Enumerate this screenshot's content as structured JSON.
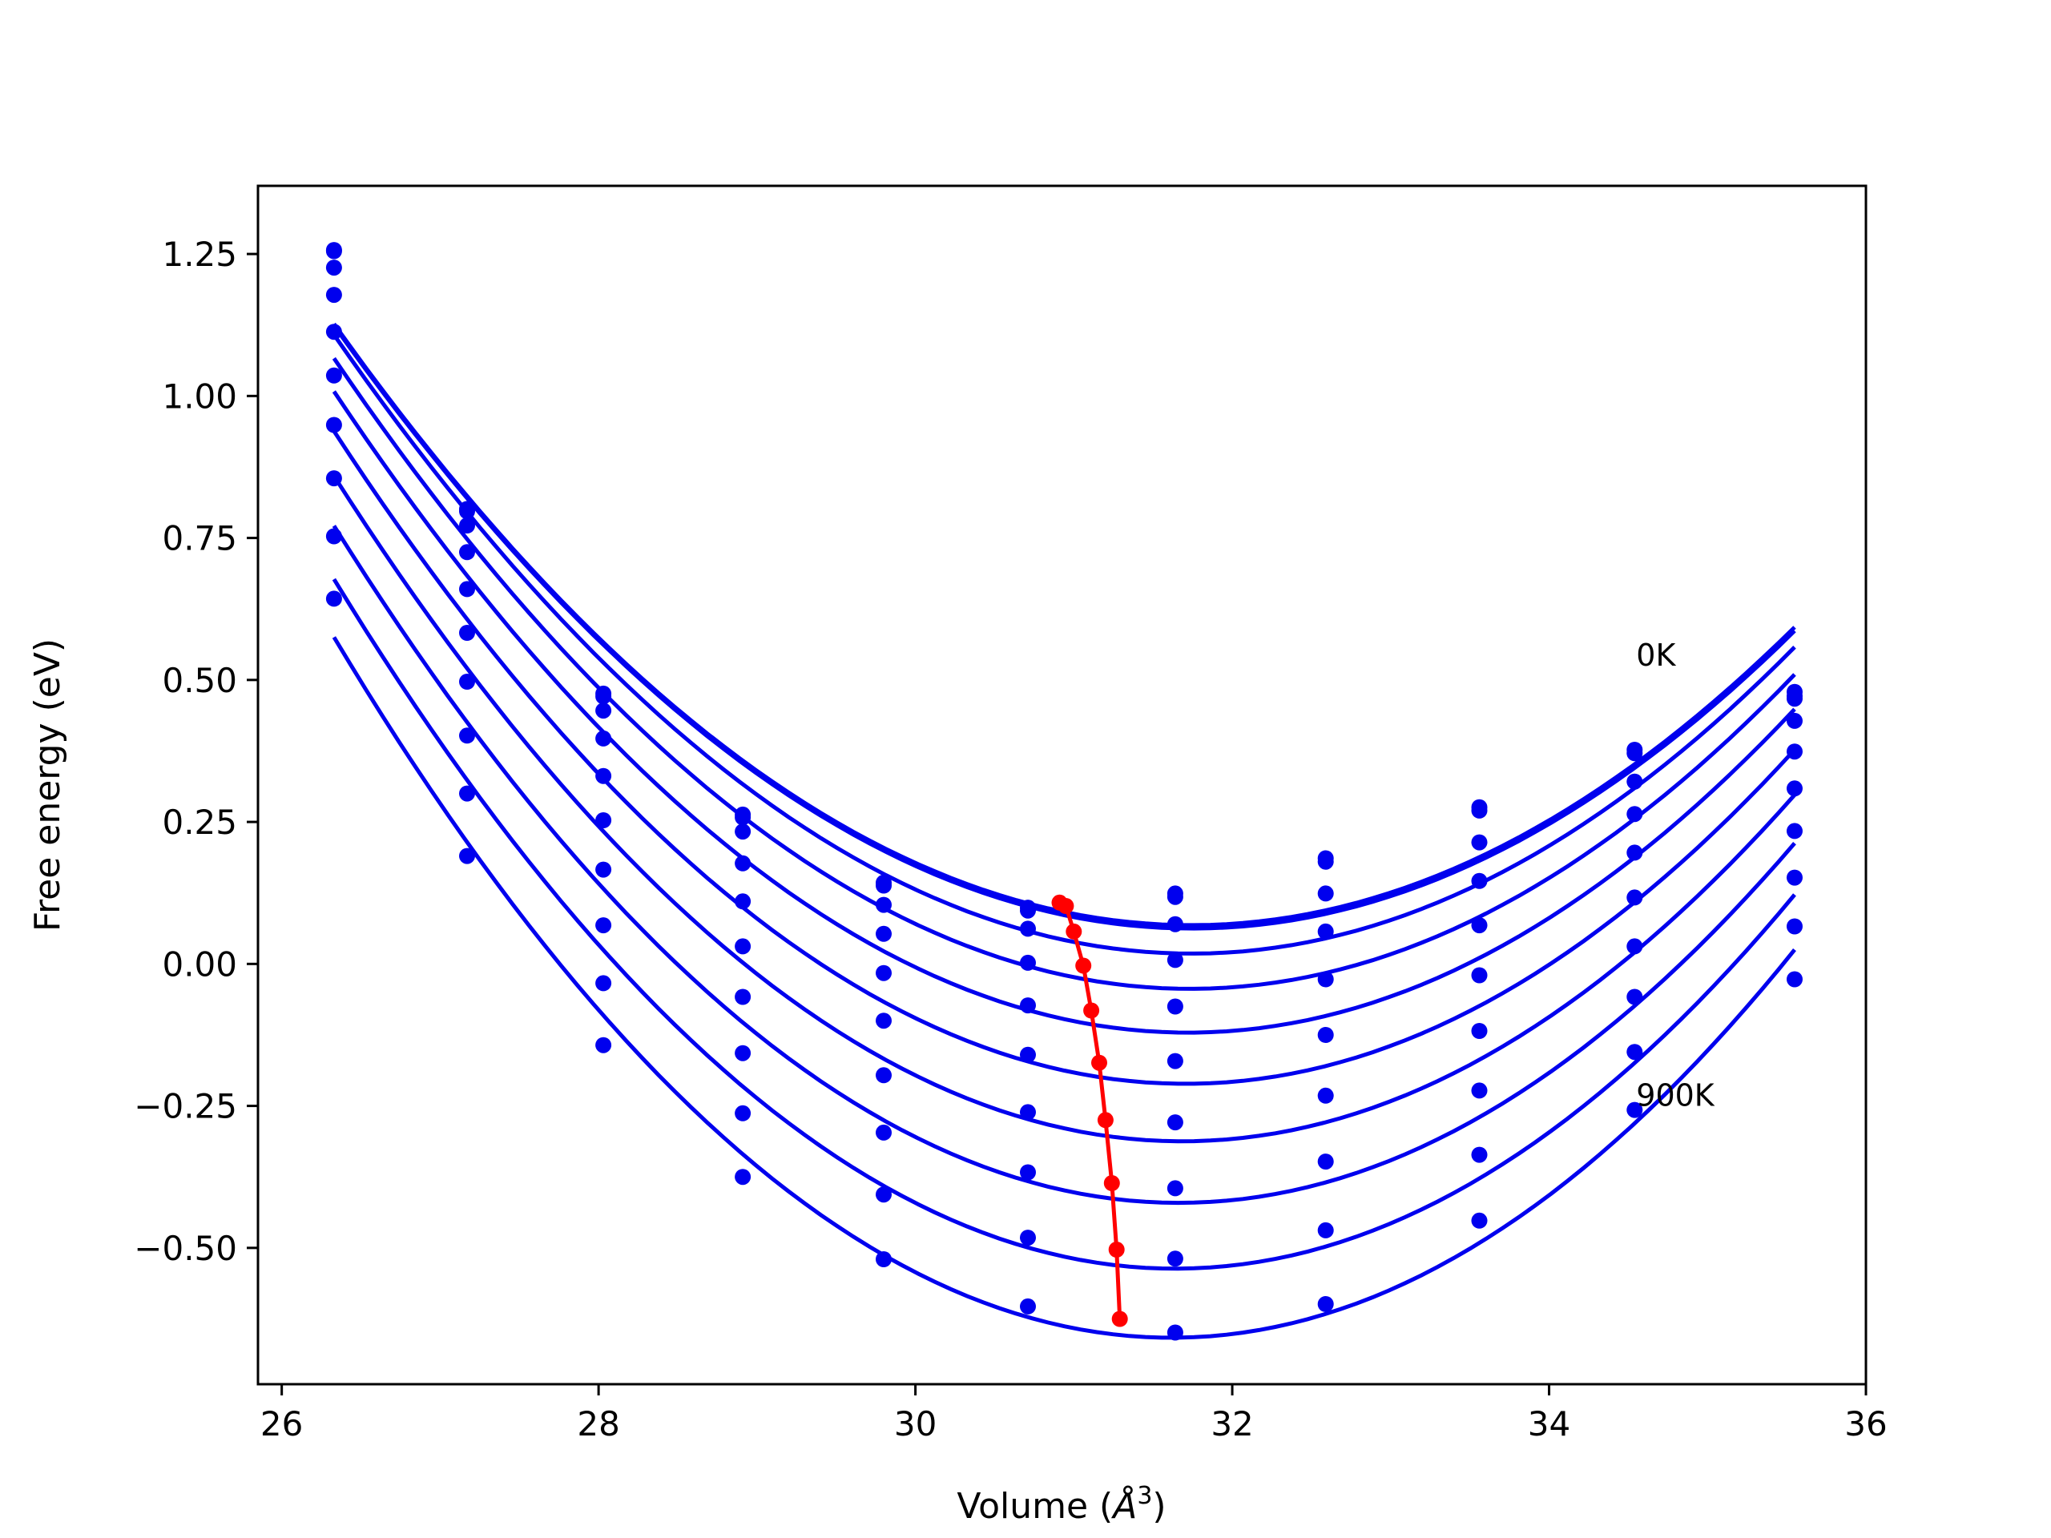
{
  "chart_data": {
    "type": "line",
    "title": "",
    "xlabel": "Volume (",
    "xlabel_unit": "Å",
    "xlabel_exp": "3",
    "xlabel_close": ")",
    "ylabel": "Free energy (eV)",
    "xlim": [
      25.85,
      36.0
    ],
    "ylim": [
      -0.74,
      1.37
    ],
    "xticks": [
      26,
      28,
      30,
      32,
      34,
      36
    ],
    "xtick_labels": [
      "26",
      "28",
      "30",
      "32",
      "34",
      "36"
    ],
    "yticks": [
      -0.5,
      -0.25,
      0.0,
      0.25,
      0.5,
      0.75,
      1.0,
      1.25
    ],
    "ytick_labels": [
      "−0.50",
      "−0.25",
      "0.00",
      "0.25",
      "0.50",
      "0.75",
      "1.00",
      "1.25"
    ],
    "grid": false,
    "colors": {
      "curves": "#0000ee",
      "points": "#0000ee",
      "minima": "#ff0000"
    },
    "annotations": [
      {
        "text": "0K",
        "x": 34.55,
        "y": 0.525
      },
      {
        "text": "900K",
        "x": 34.55,
        "y": -0.25
      }
    ],
    "volumes": [
      26.33,
      27.17,
      28.03,
      28.91,
      29.8,
      30.71,
      31.64,
      32.59,
      33.56,
      34.54,
      35.55
    ],
    "points": [
      [
        1.257,
        0.801,
        0.476,
        0.263,
        0.143,
        0.099,
        0.124,
        0.186,
        0.276,
        0.377,
        0.479
      ],
      [
        1.255,
        0.797,
        0.471,
        0.258,
        0.138,
        0.094,
        0.118,
        0.18,
        0.27,
        0.371,
        0.472
      ],
      [
        1.226,
        0.772,
        0.446,
        0.233,
        0.104,
        0.062,
        0.07,
        0.124,
        0.214,
        0.321,
        0.467
      ],
      [
        1.178,
        0.725,
        0.397,
        0.177,
        0.053,
        0.002,
        0.007,
        0.057,
        0.146,
        0.264,
        0.428
      ],
      [
        1.113,
        0.66,
        0.331,
        0.11,
        -0.016,
        -0.073,
        -0.075,
        -0.027,
        0.068,
        0.196,
        0.374
      ],
      [
        1.036,
        0.583,
        0.253,
        0.031,
        -0.1,
        -0.16,
        -0.171,
        -0.125,
        -0.02,
        0.117,
        0.309
      ],
      [
        0.949,
        0.497,
        0.166,
        -0.058,
        -0.196,
        -0.261,
        -0.279,
        -0.232,
        -0.118,
        0.031,
        0.234
      ],
      [
        0.855,
        0.402,
        0.068,
        -0.157,
        -0.297,
        -0.367,
        -0.395,
        -0.348,
        -0.223,
        -0.058,
        0.152
      ],
      [
        0.753,
        0.3,
        -0.034,
        -0.263,
        -0.406,
        -0.482,
        -0.519,
        -0.469,
        -0.336,
        -0.155,
        0.066
      ],
      [
        0.643,
        0.19,
        -0.143,
        -0.375,
        -0.52,
        -0.603,
        -0.649,
        -0.599,
        -0.452,
        -0.257,
        -0.027
      ]
    ],
    "minima": {
      "x": [
        30.91,
        30.95,
        31.0,
        31.06,
        31.11,
        31.16,
        31.2,
        31.24,
        31.27,
        31.29
      ],
      "y": [
        0.108,
        0.102,
        0.057,
        -0.003,
        -0.082,
        -0.174,
        -0.275,
        -0.386,
        -0.503,
        -0.625
      ]
    }
  }
}
